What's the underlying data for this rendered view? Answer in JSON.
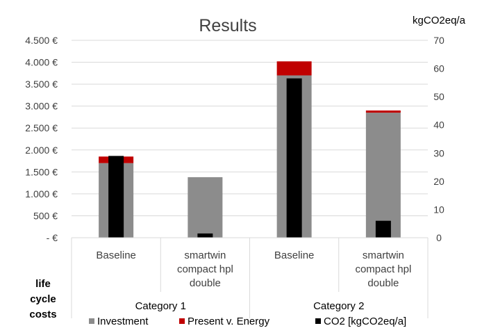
{
  "chart_data": {
    "type": "bar",
    "title": "Results",
    "y_axis_left": {
      "unit_label": "",
      "range": [
        0,
        4500
      ],
      "tick_values": [
        0,
        500,
        1000,
        1500,
        2000,
        2500,
        3000,
        3500,
        4000,
        4500
      ],
      "tick_labels": [
        "- €",
        "500 €",
        "1.000 €",
        "1.500 €",
        "2.000 €",
        "2.500 €",
        "3.000 €",
        "3.500 €",
        "4.000 €",
        "4.500 €"
      ],
      "grid": true
    },
    "y_axis_right": {
      "unit_label": "kgCO2eq/a",
      "range": [
        0,
        70
      ],
      "tick_values": [
        0,
        10,
        20,
        30,
        40,
        50,
        60,
        70
      ],
      "tick_labels": [
        "0",
        "10",
        "20",
        "30",
        "40",
        "50",
        "60",
        "70"
      ]
    },
    "x_axis": {
      "label": [
        "life",
        "cycle",
        "costs"
      ],
      "categories": [
        {
          "label_lines": [
            "Baseline"
          ],
          "group": "Category 1"
        },
        {
          "label_lines": [
            "smartwin",
            "compact hpl",
            "double"
          ],
          "group": "Category 1"
        },
        {
          "label_lines": [
            "Baseline"
          ],
          "group": "Category 2"
        },
        {
          "label_lines": [
            "smartwin",
            "compact hpl",
            "double"
          ],
          "group": "Category 2"
        }
      ],
      "groups": [
        "Category 1",
        "Category 2"
      ]
    },
    "series": [
      {
        "name": "Investment",
        "axis": "left",
        "stacked": true,
        "color": "#8c8c8c",
        "values": [
          1700,
          1380,
          3700,
          2850
        ]
      },
      {
        "name": "Present v. Energy",
        "axis": "left",
        "stacked": true,
        "color": "#c00000",
        "values": [
          150,
          0,
          320,
          50
        ]
      },
      {
        "name": "CO2 [kgCO2eq/a]",
        "axis": "right",
        "stacked": false,
        "color": "#000000",
        "values": [
          29,
          1.5,
          56.5,
          6
        ]
      }
    ],
    "legend_placement": "bottom"
  }
}
